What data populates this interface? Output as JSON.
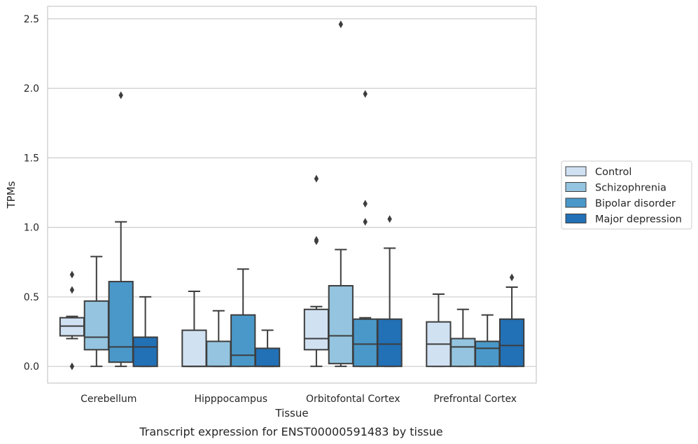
{
  "caption": "Transcript expression for ENST00000591483 by tissue",
  "chart_data": {
    "type": "box",
    "xlabel": "Tissue",
    "ylabel": "TPMs",
    "ylim": [
      -0.12,
      2.59
    ],
    "yticks": [
      0.0,
      0.5,
      1.0,
      1.5,
      2.0,
      2.5
    ],
    "ytick_labels": [
      "0.0",
      "0.5",
      "1.0",
      "1.5",
      "2.0",
      "2.5"
    ],
    "grid": true,
    "legend_position": "right",
    "categories": [
      "Cerebellum",
      "Hipppocampus",
      "Orbitofontal Cortex",
      "Prefrontal Cortex"
    ],
    "series": [
      {
        "name": "Control",
        "color": "#d0e1f2",
        "boxes": [
          {
            "whislo": 0.2,
            "q1": 0.22,
            "med": 0.29,
            "q3": 0.35,
            "whishi": 0.36,
            "fliers": [
              0.66,
              0.55,
              0.0
            ]
          },
          {
            "whislo": 0.0,
            "q1": 0.0,
            "med": 0.0,
            "q3": 0.26,
            "whishi": 0.54,
            "fliers": []
          },
          {
            "whislo": 0.0,
            "q1": 0.12,
            "med": 0.2,
            "q3": 0.41,
            "whishi": 0.43,
            "fliers": [
              1.35,
              0.91,
              0.9
            ]
          },
          {
            "whislo": 0.0,
            "q1": 0.0,
            "med": 0.16,
            "q3": 0.32,
            "whishi": 0.52,
            "fliers": []
          }
        ]
      },
      {
        "name": "Schizophrenia",
        "color": "#94c4df",
        "boxes": [
          {
            "whislo": 0.0,
            "q1": 0.12,
            "med": 0.21,
            "q3": 0.47,
            "whishi": 0.79,
            "fliers": []
          },
          {
            "whislo": 0.0,
            "q1": 0.0,
            "med": 0.0,
            "q3": 0.18,
            "whishi": 0.4,
            "fliers": []
          },
          {
            "whislo": 0.0,
            "q1": 0.02,
            "med": 0.22,
            "q3": 0.58,
            "whishi": 0.84,
            "fliers": [
              2.46
            ]
          },
          {
            "whislo": 0.0,
            "q1": 0.0,
            "med": 0.14,
            "q3": 0.2,
            "whishi": 0.41,
            "fliers": []
          }
        ]
      },
      {
        "name": "Bipolar disorder",
        "color": "#4a98c9",
        "boxes": [
          {
            "whislo": 0.0,
            "q1": 0.03,
            "med": 0.14,
            "q3": 0.61,
            "whishi": 1.04,
            "fliers": [
              1.95
            ]
          },
          {
            "whislo": 0.0,
            "q1": 0.0,
            "med": 0.08,
            "q3": 0.37,
            "whishi": 0.7,
            "fliers": []
          },
          {
            "whislo": 0.0,
            "q1": 0.0,
            "med": 0.16,
            "q3": 0.34,
            "whishi": 0.35,
            "fliers": [
              1.96,
              1.17,
              1.04
            ]
          },
          {
            "whislo": 0.0,
            "q1": 0.0,
            "med": 0.13,
            "q3": 0.18,
            "whishi": 0.37,
            "fliers": []
          }
        ]
      },
      {
        "name": "Major depression",
        "color": "#2270b5",
        "boxes": [
          {
            "whislo": 0.0,
            "q1": 0.0,
            "med": 0.14,
            "q3": 0.21,
            "whishi": 0.5,
            "fliers": []
          },
          {
            "whislo": 0.0,
            "q1": 0.0,
            "med": 0.0,
            "q3": 0.13,
            "whishi": 0.26,
            "fliers": []
          },
          {
            "whislo": 0.0,
            "q1": 0.0,
            "med": 0.16,
            "q3": 0.34,
            "whishi": 0.85,
            "fliers": [
              1.06
            ]
          },
          {
            "whislo": 0.0,
            "q1": 0.0,
            "med": 0.15,
            "q3": 0.34,
            "whishi": 0.57,
            "fliers": [
              0.64
            ]
          }
        ]
      }
    ]
  }
}
